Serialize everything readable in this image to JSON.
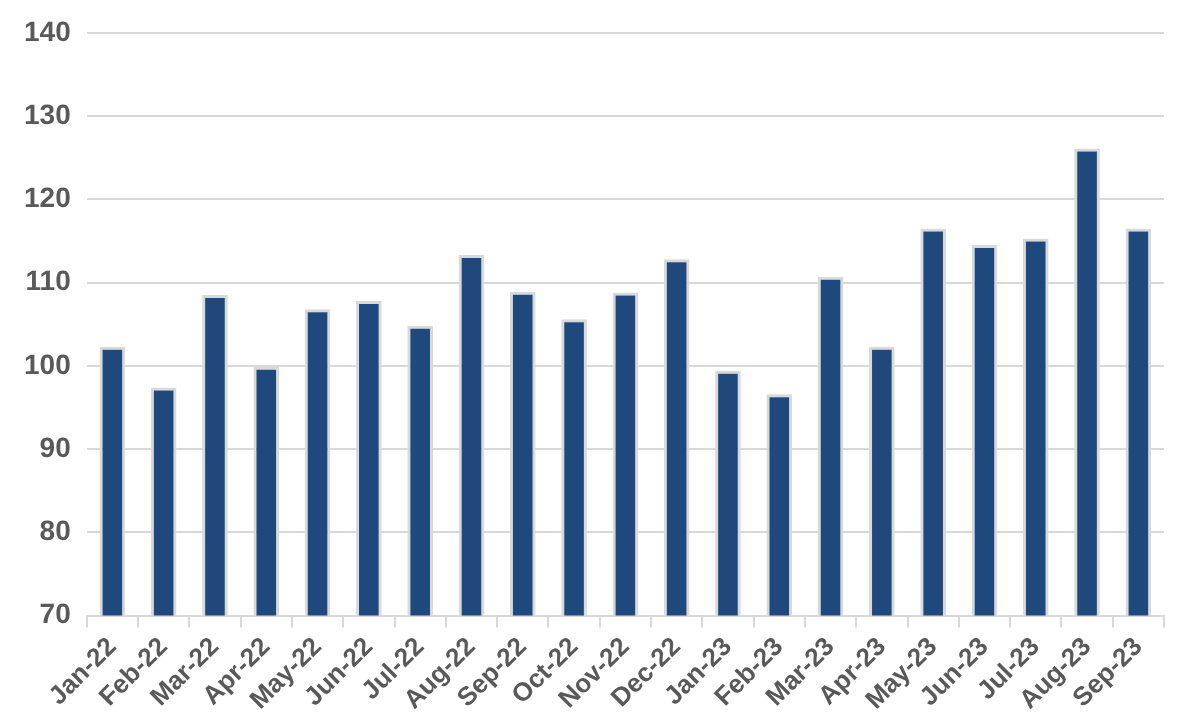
{
  "chart_data": {
    "type": "bar",
    "categories": [
      "Jan-22",
      "Feb-22",
      "Mar-22",
      "Apr-22",
      "May-22",
      "Jun-22",
      "Jul-22",
      "Aug-22",
      "Sep-22",
      "Oct-22",
      "Nov-22",
      "Dec-22",
      "Jan-23",
      "Feb-23",
      "Mar-23",
      "Apr-23",
      "May-23",
      "Jun-23",
      "Jul-23",
      "Aug-23",
      "Sep-23"
    ],
    "values": [
      102.3,
      97.4,
      108.5,
      99.9,
      106.8,
      107.8,
      104.8,
      113.3,
      108.9,
      105.6,
      108.8,
      112.8,
      99.4,
      96.6,
      110.7,
      102.3,
      116.5,
      114.5,
      115.3,
      126.1,
      116.5
    ],
    "color": "#1f497d",
    "ylim": [
      70,
      140
    ],
    "yticks": [
      70,
      80,
      90,
      100,
      110,
      120,
      130,
      140
    ],
    "grid": "y",
    "legend": false
  }
}
